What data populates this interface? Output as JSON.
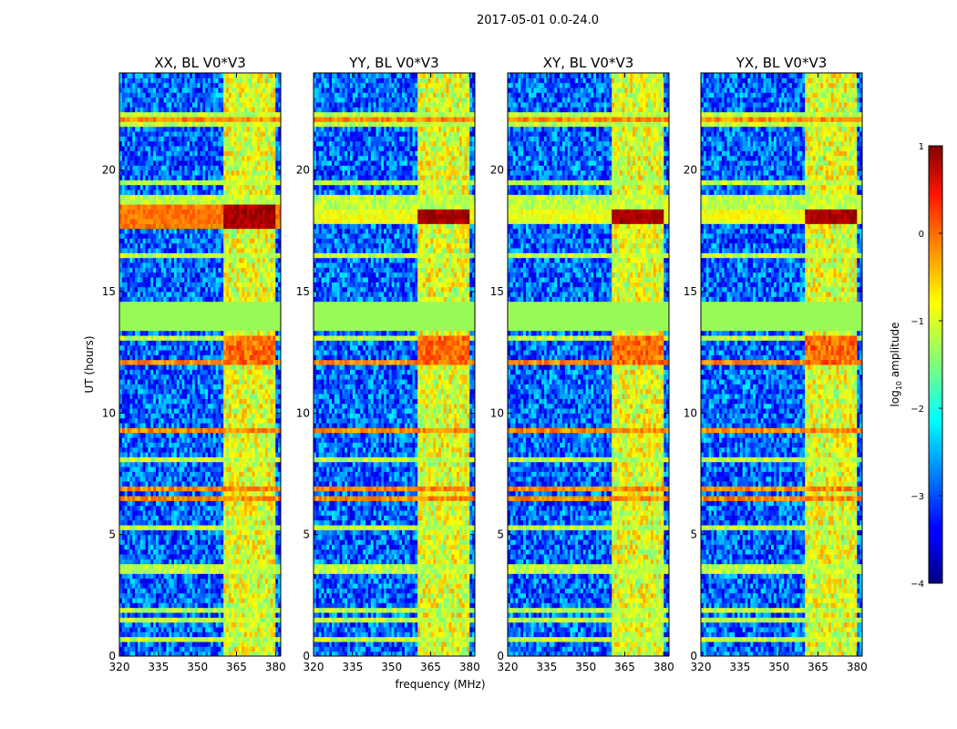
{
  "figure": {
    "title": "2017-05-01 0.0-24.0"
  },
  "chart_data": {
    "type": "heatmap",
    "title": "2017-05-01 0.0-24.0",
    "xlabel": "frequency (MHz)",
    "ylabel": "UT (hours)",
    "xlim": [
      320,
      382
    ],
    "ylim": [
      0,
      24
    ],
    "xticks": [
      "320",
      "335",
      "350",
      "365",
      "380"
    ],
    "yticks": [
      "0",
      "5",
      "10",
      "15",
      "20"
    ],
    "panels": [
      {
        "title": "XX, BL V0*V3",
        "strong_band_hours": [
          17.6,
          18.6
        ],
        "drift_feature": "faint 9.8-11.2 h"
      },
      {
        "title": "YY, BL V0*V3",
        "strong_band_hours": [
          17.8,
          18.4
        ],
        "drift_feature": "faint 9.8-11.2 h"
      },
      {
        "title": "XY, BL V0*V3",
        "strong_band_hours": [
          17.8,
          18.4
        ],
        "drift_feature": "none"
      },
      {
        "title": "YX, BL V0*V3",
        "strong_band_hours": [
          17.8,
          18.3
        ],
        "drift_feature": "none"
      }
    ],
    "blank_interval_hours": [
      13.4,
      14.7
    ],
    "rfi_band_mhz": [
      360,
      380
    ],
    "colorbar": {
      "label": "log₁₀ amplitude",
      "label_base": "log",
      "label_sub": "10",
      "label_rest": " amplitude",
      "range": [
        -4,
        1
      ],
      "ticks": [
        "1",
        "0",
        "−1",
        "−2",
        "−3",
        "−4"
      ],
      "colormap": "jet"
    }
  }
}
